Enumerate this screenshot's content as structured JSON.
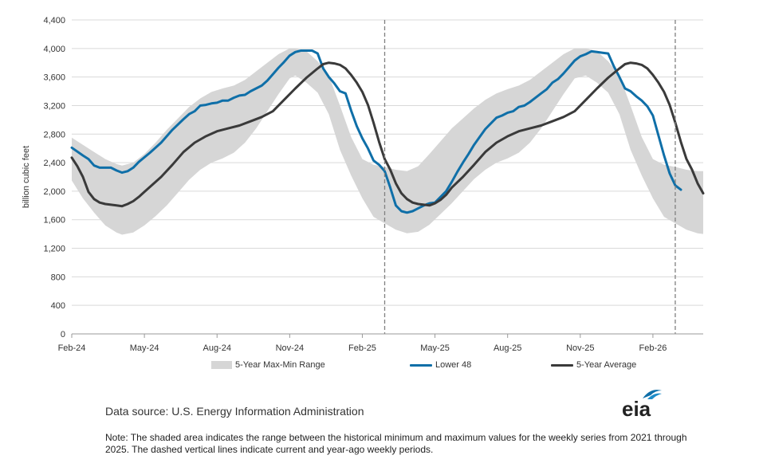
{
  "chart_data": {
    "type": "line",
    "ylabel": "billion cubic feet",
    "xlabel": "",
    "ylim": [
      0,
      4400
    ],
    "yticks": [
      0,
      400,
      800,
      1200,
      1600,
      2000,
      2400,
      2800,
      3200,
      3600,
      4000,
      4400
    ],
    "ytick_labels": [
      "0",
      "400",
      "800",
      "1,200",
      "1,600",
      "2,000",
      "2,400",
      "2,800",
      "3,200",
      "3,600",
      "4,000",
      "4,400"
    ],
    "xlim": [
      0,
      113
    ],
    "xticks": [
      {
        "label": "Feb-24",
        "x": 0
      },
      {
        "label": "May-24",
        "x": 13
      },
      {
        "label": "Aug-24",
        "x": 26
      },
      {
        "label": "Nov-24",
        "x": 39
      },
      {
        "label": "Feb-25",
        "x": 52
      },
      {
        "label": "May-25",
        "x": 65
      },
      {
        "label": "Aug-25",
        "x": 78
      },
      {
        "label": "Nov-25",
        "x": 91
      },
      {
        "label": "Feb-26",
        "x": 104
      }
    ],
    "dashed_lines": [
      56,
      108
    ],
    "grid": "horizontal",
    "legend_position": "bottom",
    "series": [
      {
        "name": "5-Year Max-Min Range",
        "kind": "band",
        "color": "#d6d6d6",
        "points": [
          [
            0,
            2750,
            2150
          ],
          [
            2,
            2650,
            1900
          ],
          [
            4,
            2550,
            1700
          ],
          [
            6,
            2450,
            1520
          ],
          [
            8,
            2380,
            1420
          ],
          [
            9,
            2360,
            1390
          ],
          [
            11,
            2400,
            1420
          ],
          [
            13,
            2520,
            1520
          ],
          [
            15,
            2680,
            1650
          ],
          [
            17,
            2860,
            1800
          ],
          [
            19,
            3020,
            1980
          ],
          [
            21,
            3180,
            2160
          ],
          [
            23,
            3300,
            2300
          ],
          [
            25,
            3390,
            2400
          ],
          [
            27,
            3440,
            2460
          ],
          [
            29,
            3480,
            2540
          ],
          [
            31,
            3560,
            2680
          ],
          [
            33,
            3680,
            2880
          ],
          [
            35,
            3800,
            3120
          ],
          [
            37,
            3920,
            3360
          ],
          [
            39,
            4000,
            3580
          ],
          [
            40,
            4000,
            3620
          ],
          [
            42,
            3960,
            3520
          ],
          [
            44,
            3820,
            3380
          ],
          [
            46,
            3620,
            3080
          ],
          [
            48,
            3200,
            2580
          ],
          [
            50,
            2760,
            2220
          ],
          [
            52,
            2450,
            1900
          ],
          [
            54,
            2370,
            1640
          ],
          [
            56,
            2340,
            1550
          ],
          [
            58,
            2300,
            1460
          ],
          [
            60,
            2280,
            1410
          ],
          [
            62,
            2350,
            1430
          ],
          [
            64,
            2520,
            1530
          ],
          [
            66,
            2700,
            1680
          ],
          [
            68,
            2880,
            1830
          ],
          [
            70,
            3020,
            2000
          ],
          [
            72,
            3160,
            2170
          ],
          [
            74,
            3280,
            2300
          ],
          [
            76,
            3370,
            2400
          ],
          [
            78,
            3430,
            2460
          ],
          [
            80,
            3480,
            2540
          ],
          [
            82,
            3560,
            2680
          ],
          [
            84,
            3680,
            2880
          ],
          [
            86,
            3800,
            3120
          ],
          [
            88,
            3920,
            3360
          ],
          [
            90,
            4000,
            3580
          ],
          [
            92,
            4000,
            3620
          ],
          [
            94,
            3960,
            3520
          ],
          [
            96,
            3820,
            3380
          ],
          [
            98,
            3620,
            3080
          ],
          [
            100,
            3200,
            2580
          ],
          [
            102,
            2760,
            2220
          ],
          [
            104,
            2450,
            1900
          ],
          [
            106,
            2370,
            1640
          ],
          [
            108,
            2340,
            1550
          ],
          [
            110,
            2300,
            1460
          ],
          [
            112,
            2280,
            1410
          ],
          [
            113,
            2280,
            1400
          ]
        ]
      },
      {
        "name": "Lower 48",
        "kind": "line",
        "color": "#0f6fa8",
        "points": [
          [
            0,
            2610
          ],
          [
            2,
            2500
          ],
          [
            3,
            2450
          ],
          [
            4,
            2360
          ],
          [
            5,
            2330
          ],
          [
            7,
            2330
          ],
          [
            8,
            2290
          ],
          [
            9,
            2260
          ],
          [
            10,
            2280
          ],
          [
            11,
            2330
          ],
          [
            12,
            2410
          ],
          [
            14,
            2540
          ],
          [
            16,
            2680
          ],
          [
            18,
            2860
          ],
          [
            20,
            3010
          ],
          [
            21,
            3080
          ],
          [
            22,
            3120
          ],
          [
            23,
            3200
          ],
          [
            24,
            3210
          ],
          [
            25,
            3230
          ],
          [
            26,
            3240
          ],
          [
            27,
            3270
          ],
          [
            28,
            3270
          ],
          [
            29,
            3310
          ],
          [
            30,
            3340
          ],
          [
            31,
            3350
          ],
          [
            32,
            3400
          ],
          [
            34,
            3480
          ],
          [
            35,
            3550
          ],
          [
            36,
            3640
          ],
          [
            37,
            3730
          ],
          [
            38,
            3810
          ],
          [
            39,
            3900
          ],
          [
            40,
            3950
          ],
          [
            41,
            3970
          ],
          [
            42,
            3970
          ],
          [
            43,
            3970
          ],
          [
            44,
            3930
          ],
          [
            45,
            3720
          ],
          [
            46,
            3600
          ],
          [
            47,
            3510
          ],
          [
            48,
            3400
          ],
          [
            49,
            3370
          ],
          [
            50,
            3130
          ],
          [
            51,
            2910
          ],
          [
            52,
            2740
          ],
          [
            53,
            2600
          ],
          [
            54,
            2430
          ],
          [
            55,
            2370
          ],
          [
            56,
            2280
          ],
          [
            57,
            2050
          ],
          [
            58,
            1800
          ],
          [
            59,
            1720
          ],
          [
            60,
            1700
          ],
          [
            61,
            1720
          ],
          [
            62,
            1760
          ],
          [
            63,
            1800
          ],
          [
            64,
            1830
          ],
          [
            65,
            1840
          ],
          [
            66,
            1920
          ],
          [
            67,
            2000
          ],
          [
            68,
            2130
          ],
          [
            69,
            2270
          ],
          [
            70,
            2400
          ],
          [
            71,
            2520
          ],
          [
            72,
            2650
          ],
          [
            73,
            2760
          ],
          [
            74,
            2870
          ],
          [
            75,
            2950
          ],
          [
            76,
            3030
          ],
          [
            77,
            3060
          ],
          [
            78,
            3100
          ],
          [
            79,
            3120
          ],
          [
            80,
            3180
          ],
          [
            81,
            3200
          ],
          [
            82,
            3250
          ],
          [
            84,
            3370
          ],
          [
            85,
            3430
          ],
          [
            86,
            3520
          ],
          [
            87,
            3570
          ],
          [
            88,
            3650
          ],
          [
            89,
            3740
          ],
          [
            90,
            3830
          ],
          [
            91,
            3890
          ],
          [
            92,
            3920
          ],
          [
            93,
            3960
          ],
          [
            94,
            3950
          ],
          [
            95,
            3940
          ],
          [
            96,
            3930
          ],
          [
            97,
            3750
          ],
          [
            98,
            3600
          ],
          [
            99,
            3440
          ],
          [
            100,
            3400
          ],
          [
            101,
            3330
          ],
          [
            102,
            3270
          ],
          [
            103,
            3190
          ],
          [
            104,
            3060
          ],
          [
            105,
            2780
          ],
          [
            106,
            2500
          ],
          [
            107,
            2250
          ],
          [
            108,
            2080
          ],
          [
            109,
            2020
          ]
        ]
      },
      {
        "name": "5-Year Average",
        "kind": "line",
        "color": "#3a3a3a",
        "points": [
          [
            0,
            2470
          ],
          [
            1,
            2350
          ],
          [
            2,
            2200
          ],
          [
            3,
            1990
          ],
          [
            4,
            1890
          ],
          [
            5,
            1840
          ],
          [
            6,
            1820
          ],
          [
            7,
            1810
          ],
          [
            8,
            1800
          ],
          [
            9,
            1790
          ],
          [
            10,
            1820
          ],
          [
            11,
            1860
          ],
          [
            12,
            1920
          ],
          [
            13,
            1990
          ],
          [
            14,
            2060
          ],
          [
            16,
            2200
          ],
          [
            18,
            2370
          ],
          [
            20,
            2550
          ],
          [
            22,
            2680
          ],
          [
            24,
            2770
          ],
          [
            26,
            2840
          ],
          [
            28,
            2880
          ],
          [
            30,
            2920
          ],
          [
            32,
            2980
          ],
          [
            34,
            3040
          ],
          [
            36,
            3120
          ],
          [
            38,
            3280
          ],
          [
            40,
            3440
          ],
          [
            42,
            3590
          ],
          [
            44,
            3720
          ],
          [
            45,
            3780
          ],
          [
            46,
            3800
          ],
          [
            47,
            3790
          ],
          [
            48,
            3770
          ],
          [
            49,
            3720
          ],
          [
            50,
            3630
          ],
          [
            51,
            3520
          ],
          [
            52,
            3390
          ],
          [
            53,
            3210
          ],
          [
            54,
            2960
          ],
          [
            55,
            2690
          ],
          [
            56,
            2450
          ],
          [
            57,
            2300
          ],
          [
            58,
            2110
          ],
          [
            59,
            1970
          ],
          [
            60,
            1890
          ],
          [
            61,
            1840
          ],
          [
            62,
            1820
          ],
          [
            63,
            1810
          ],
          [
            64,
            1800
          ],
          [
            65,
            1830
          ],
          [
            66,
            1880
          ],
          [
            67,
            1950
          ],
          [
            68,
            2050
          ],
          [
            70,
            2200
          ],
          [
            72,
            2370
          ],
          [
            74,
            2550
          ],
          [
            76,
            2680
          ],
          [
            78,
            2770
          ],
          [
            80,
            2840
          ],
          [
            82,
            2880
          ],
          [
            84,
            2920
          ],
          [
            86,
            2980
          ],
          [
            88,
            3040
          ],
          [
            90,
            3120
          ],
          [
            92,
            3280
          ],
          [
            94,
            3440
          ],
          [
            96,
            3590
          ],
          [
            98,
            3720
          ],
          [
            99,
            3780
          ],
          [
            100,
            3800
          ],
          [
            101,
            3790
          ],
          [
            102,
            3770
          ],
          [
            103,
            3720
          ],
          [
            104,
            3630
          ],
          [
            105,
            3520
          ],
          [
            106,
            3390
          ],
          [
            107,
            3210
          ],
          [
            108,
            2960
          ],
          [
            109,
            2690
          ],
          [
            110,
            2450
          ],
          [
            111,
            2300
          ],
          [
            112,
            2110
          ],
          [
            113,
            1970
          ]
        ]
      }
    ]
  },
  "source_text": "Data source: U.S. Energy Information Administration",
  "note_text": "Note: The shaded area indicates the range between the historical minimum and maximum values for the weekly series from 2021 through 2025. The dashed vertical lines indicate current and year-ago weekly periods.",
  "logo_text": "eia"
}
